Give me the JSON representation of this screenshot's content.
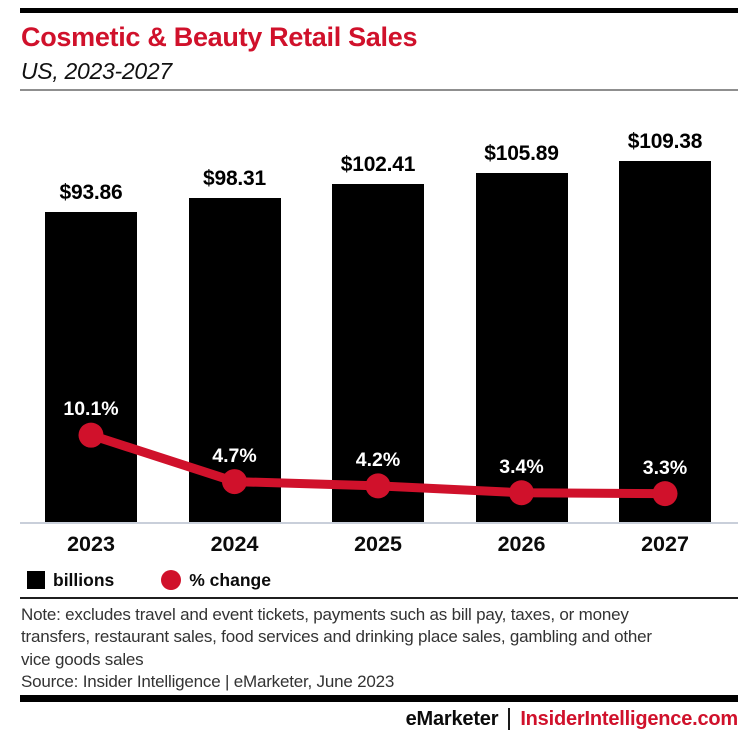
{
  "header": {
    "title": "Cosmetic & Beauty Retail Sales",
    "subtitle": "US, 2023-2027"
  },
  "chart_data": {
    "type": "bar",
    "combo": "bar+line",
    "categories": [
      "2023",
      "2024",
      "2025",
      "2026",
      "2027"
    ],
    "series": [
      {
        "name": "billions",
        "chart_type": "bar",
        "color": "#000000",
        "values": [
          93.86,
          98.31,
          102.41,
          105.89,
          109.38
        ],
        "data_labels": [
          "$93.86",
          "$98.31",
          "$102.41",
          "$105.89",
          "$109.38"
        ]
      },
      {
        "name": "% change",
        "chart_type": "line",
        "color": "#d0112b",
        "values": [
          10.1,
          4.7,
          4.2,
          3.4,
          3.3
        ],
        "data_labels": [
          "10.1%",
          "4.7%",
          "4.2%",
          "3.4%",
          "3.3%"
        ]
      }
    ],
    "title": "Cosmetic & Beauty Retail Sales",
    "subtitle": "US, 2023-2027",
    "xlabel": "",
    "ylabel": "",
    "bar_axis_origin": 0,
    "grid": false,
    "legend_position": "bottom"
  },
  "legend": {
    "items": [
      {
        "label": "billions",
        "swatch": "square",
        "color": "#000000"
      },
      {
        "label": "% change",
        "swatch": "circle",
        "color": "#d0112b"
      }
    ]
  },
  "footer": {
    "note_lines": [
      "Note: excludes travel and event tickets, payments such as bill pay, taxes, or money",
      "transfers, restaurant sales, food services and drinking place sales, gambling and other",
      "vice goods sales"
    ],
    "source": "Source: Insider Intelligence | eMarketer, June 2023"
  },
  "brand": {
    "left": "eMarketer",
    "right": "InsiderIntelligence.com"
  },
  "colors": {
    "accent_red": "#d0112b",
    "bar_black": "#000000"
  }
}
